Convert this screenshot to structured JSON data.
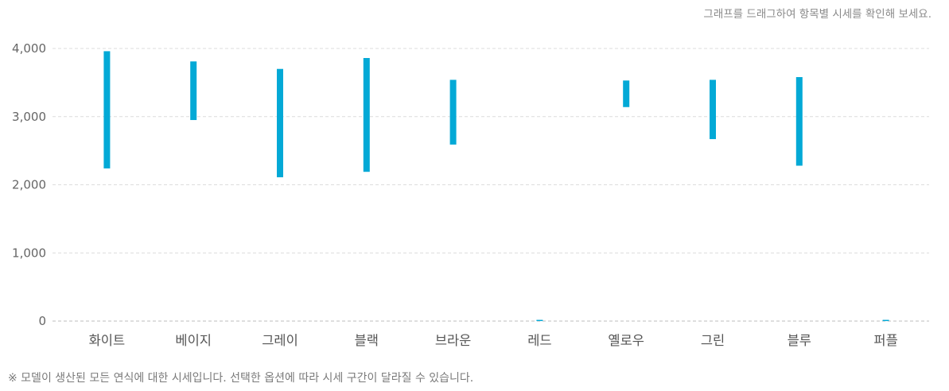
{
  "hint_text": "그래프를 드래그하여 항목별 시세를 확인해 보세요.",
  "footnote": "※ 모델이 생산된 모든 연식에 대한 시세입니다. 선택한 옵션에 따라 시세 구간이 달라질 수 있습니다.",
  "chart_data": {
    "type": "bar",
    "subtype": "floating-range",
    "categories": [
      "화이트",
      "베이지",
      "그레이",
      "블랙",
      "브라운",
      "레드",
      "옐로우",
      "그린",
      "블루",
      "퍼플"
    ],
    "series": [
      {
        "low": [
          2240,
          2950,
          2110,
          2190,
          2590,
          0,
          3140,
          2670,
          2280,
          0
        ],
        "high": [
          3960,
          3810,
          3700,
          3860,
          3540,
          0,
          3530,
          3540,
          3580,
          0
        ]
      }
    ],
    "ylim": [
      0,
      4000
    ],
    "yticks": [
      0,
      1000,
      2000,
      3000,
      4000
    ],
    "ytick_labels": [
      "0",
      "1,000",
      "2,000",
      "3,000",
      "4,000"
    ],
    "grid": true,
    "legend": "none",
    "bar_color": "#03a9d6"
  }
}
